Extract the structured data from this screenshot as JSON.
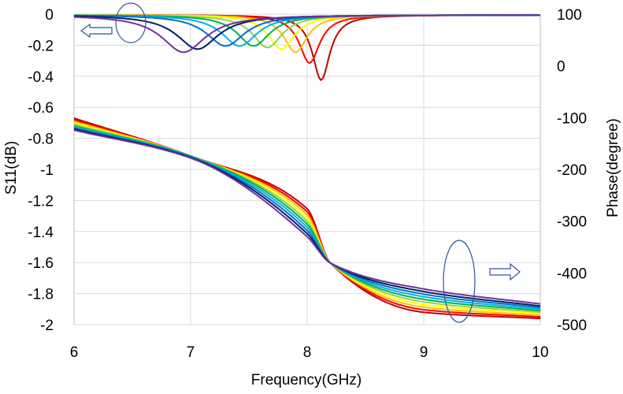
{
  "chart_data": {
    "type": "line",
    "xlabel": "Frequency(GHz)",
    "ylabel_left": "S11(dB)",
    "ylabel_right": "Phase(degree)",
    "xlim": [
      6,
      10
    ],
    "ylim_left": [
      -2,
      0
    ],
    "ylim_right": [
      -500,
      100
    ],
    "x_ticks": [
      "6",
      "7",
      "8",
      "9",
      "10"
    ],
    "y_left_ticks": [
      "0",
      "-0.2",
      "-0.4",
      "-0.6",
      "-0.8",
      "-1",
      "-1.2",
      "-1.4",
      "-1.6",
      "-1.8",
      "-2"
    ],
    "y_right_ticks": [
      "100",
      "0",
      "-100",
      "-200",
      "-300",
      "-400",
      "-500"
    ],
    "grid": true,
    "colors": [
      "#c00000",
      "#ff0000",
      "#ffc000",
      "#ffff00",
      "#92d050",
      "#00b050",
      "#00b0f0",
      "#0070c0",
      "#002060",
      "#7030a0"
    ],
    "resonance_GHz": [
      8.12,
      8.02,
      7.9,
      7.78,
      7.66,
      7.54,
      7.42,
      7.3,
      7.06,
      6.94
    ],
    "s11_dip_dB": [
      -0.42,
      -0.31,
      -0.24,
      -0.22,
      -0.21,
      -0.2,
      -0.2,
      -0.2,
      -0.22,
      -0.24
    ],
    "phase_deg": {
      "x": [
        6,
        7,
        8,
        8.2,
        9,
        10
      ],
      "series": [
        [
          -101,
          -174,
          -276,
          -381,
          -476,
          -488
        ],
        [
          -104,
          -174,
          -282,
          -381,
          -471,
          -485
        ],
        [
          -107,
          -174,
          -288,
          -381,
          -466,
          -482
        ],
        [
          -110,
          -174,
          -294,
          -381,
          -461,
          -479
        ],
        [
          -113,
          -174,
          -300,
          -381,
          -456,
          -476
        ],
        [
          -116,
          -174,
          -306,
          -381,
          -451,
          -473
        ],
        [
          -118,
          -175,
          -312,
          -381,
          -446,
          -470
        ],
        [
          -120,
          -176,
          -318,
          -381,
          -441,
          -467
        ],
        [
          -122,
          -177,
          -324,
          -381,
          -436,
          -464
        ],
        [
          -124,
          -178,
          -330,
          -381,
          -431,
          -460
        ]
      ]
    }
  },
  "annotations": {
    "left_arrow": "arrow-left-icon",
    "right_arrow": "arrow-right-icon"
  }
}
